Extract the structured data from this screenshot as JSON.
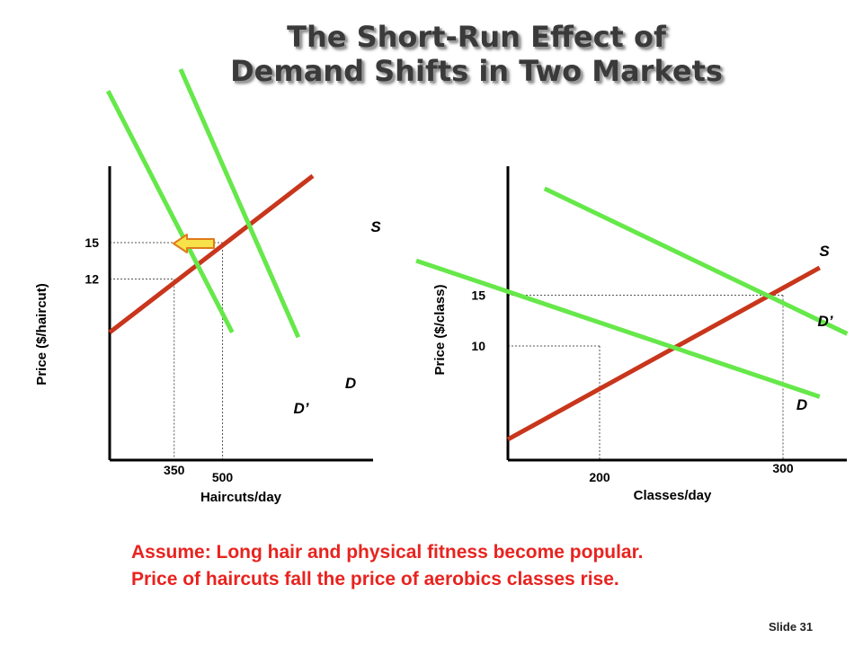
{
  "title": {
    "line1": "The Short-Run Effect of",
    "line2": "Demand Shifts in Two Markets"
  },
  "colors": {
    "supply": "#c8361c",
    "demand": "#66e84a",
    "axis": "#000000",
    "note": "#e8231f",
    "arrow_fill": "#f7e24a",
    "arrow_stroke": "#e07b1a"
  },
  "chart_data": [
    {
      "type": "line",
      "market": "haircuts",
      "xlabel": "Haircuts/day",
      "ylabel": "Price ($/haircut)",
      "x_ticks": [
        350,
        500
      ],
      "y_ticks": [
        12,
        15
      ],
      "series": [
        {
          "name": "S",
          "points": [
            [
              150,
              7.6
            ],
            [
              780,
              20.5
            ]
          ]
        },
        {
          "name": "D",
          "points": [
            [
              370,
              29.3
            ],
            [
              735,
              7.2
            ]
          ]
        },
        {
          "name": "D’",
          "points": [
            [
              145,
              27.5
            ],
            [
              530,
              7.6
            ]
          ]
        }
      ],
      "equilibria": [
        {
          "quantity": 500,
          "price": 15
        },
        {
          "quantity": 350,
          "price": 12
        }
      ],
      "shift_arrow": "left"
    },
    {
      "type": "line",
      "market": "aerobics classes",
      "xlabel": "Classes/day",
      "ylabel": "Price ($/class)",
      "x_ticks": [
        200,
        300
      ],
      "y_ticks": [
        10,
        15
      ],
      "series": [
        {
          "name": "S",
          "points": [
            [
              150,
              0.8
            ],
            [
              320,
              17.7
            ]
          ]
        },
        {
          "name": "D",
          "points": [
            [
              100,
              18.4
            ],
            [
              320,
              5
            ]
          ]
        },
        {
          "name": "D’",
          "points": [
            [
              170,
              25.5
            ],
            [
              335,
              11.2
            ]
          ]
        }
      ],
      "equilibria": [
        {
          "quantity": 200,
          "price": 10
        },
        {
          "quantity": 300,
          "price": 15
        }
      ]
    }
  ],
  "note": {
    "line1": "Assume: Long hair and physical fitness become popular.",
    "line2": "Price of haircuts fall the price of aerobics classes rise."
  },
  "slide_label": "Slide 31"
}
